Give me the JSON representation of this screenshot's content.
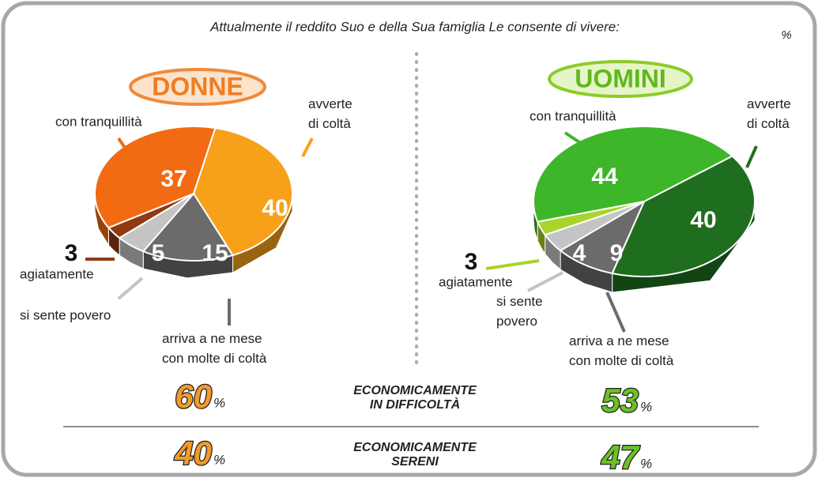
{
  "title": "Attualmente il reddito Suo e della Sua famiglia Le consente di vivere:",
  "unit": "%",
  "chart_data": [
    {
      "type": "pie",
      "title": "DONNE",
      "categories": [
        "avverte\ndi  coltà",
        "arriva a  ne mese\ncon molte di  coltà",
        "si sente povero",
        "agiatamente",
        "con tranquillità"
      ],
      "values": [
        40,
        15,
        5,
        3,
        37
      ],
      "colors": [
        "#f7a11a",
        "#6b6b6b",
        "#c4c4c4",
        "#8e3b12",
        "#f26a12"
      ]
    },
    {
      "type": "pie",
      "title": "UOMINI",
      "categories": [
        "avverte\ndi  coltà",
        "arriva a  ne mese\ncon molte di  coltà",
        "si sente\npovero",
        "agiatamente",
        "con tranquillità"
      ],
      "values": [
        40,
        9,
        4,
        3,
        44
      ],
      "colors": [
        "#1f6e1f",
        "#6b6b6b",
        "#c4c4c4",
        "#a8d42c",
        "#3db62a"
      ]
    }
  ],
  "summary": [
    {
      "label": [
        "ECONOMICAMENTE",
        "IN DIFFICOLTÀ"
      ],
      "women": 60,
      "men": 53
    },
    {
      "label": [
        "ECONOMICAMENTE",
        "SERENI"
      ],
      "women": 40,
      "men": 47
    }
  ]
}
